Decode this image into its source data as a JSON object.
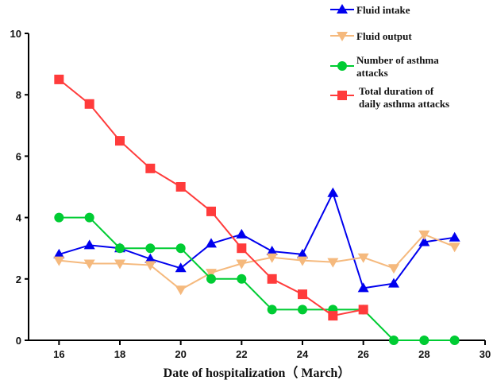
{
  "chart_data": {
    "type": "line",
    "title": "",
    "xlabel": "Date of hospitalization（ March）",
    "ylabel": "",
    "xlim": [
      15,
      30
    ],
    "ylim": [
      0,
      10
    ],
    "xticks": [
      16,
      18,
      20,
      22,
      24,
      26,
      28,
      30
    ],
    "yticks": [
      0,
      2,
      4,
      6,
      8,
      10
    ],
    "legend_position": "top-right",
    "series": [
      {
        "name": "Fluid intake",
        "color": "#0000ee",
        "marker": "triangle-up",
        "x": [
          16,
          17,
          18,
          19,
          20,
          21,
          22,
          23,
          24,
          25,
          26,
          27,
          28,
          29
        ],
        "y": [
          2.8,
          3.1,
          3.0,
          2.65,
          2.35,
          3.15,
          3.45,
          2.9,
          2.8,
          4.8,
          1.7,
          1.85,
          3.2,
          3.35
        ]
      },
      {
        "name": "Fluid output",
        "color": "#f5b97d",
        "marker": "triangle-down",
        "x": [
          16,
          17,
          18,
          19,
          20,
          21,
          22,
          23,
          24,
          25,
          26,
          27,
          28,
          29
        ],
        "y": [
          2.6,
          2.5,
          2.5,
          2.45,
          1.65,
          2.2,
          2.5,
          2.7,
          2.6,
          2.55,
          2.7,
          2.35,
          3.45,
          3.05
        ]
      },
      {
        "name": "Number of asthma attacks",
        "legend_lines": [
          "Number of asthma",
          "attacks"
        ],
        "color": "#00cc33",
        "marker": "circle",
        "x": [
          16,
          17,
          18,
          19,
          20,
          21,
          22,
          23,
          24,
          25,
          26,
          27,
          28,
          29
        ],
        "y": [
          4,
          4,
          3,
          3,
          3,
          2,
          2,
          1,
          1,
          1,
          1,
          0,
          0,
          0
        ]
      },
      {
        "name": "Total duration of daily asthma attacks",
        "legend_lines": [
          "Total duration of",
          "daily asthma attacks"
        ],
        "color": "#ff3b3b",
        "marker": "square",
        "x": [
          16,
          17,
          18,
          19,
          20,
          21,
          22,
          23,
          24,
          25,
          26
        ],
        "y": [
          8.5,
          7.7,
          6.5,
          5.6,
          5.0,
          4.2,
          3.0,
          2.0,
          1.5,
          0.8,
          1.0
        ]
      }
    ]
  }
}
